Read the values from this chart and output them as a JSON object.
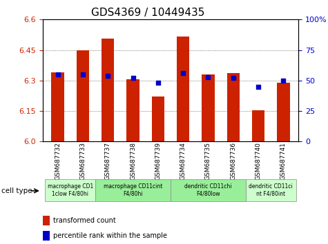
{
  "title": "GDS4369 / 10449435",
  "samples": [
    "GSM687732",
    "GSM687733",
    "GSM687737",
    "GSM687738",
    "GSM687739",
    "GSM687734",
    "GSM687735",
    "GSM687736",
    "GSM687740",
    "GSM687741"
  ],
  "transformed_counts": [
    6.34,
    6.45,
    6.505,
    6.305,
    6.22,
    6.515,
    6.33,
    6.335,
    6.155,
    6.29
  ],
  "percentile_ranks": [
    55,
    55,
    54,
    52,
    48,
    56,
    53,
    52,
    45,
    50
  ],
  "ylim_left": [
    6.0,
    6.6
  ],
  "ylim_right": [
    0,
    100
  ],
  "yticks_left": [
    6.0,
    6.15,
    6.3,
    6.45,
    6.6
  ],
  "yticks_right": [
    0,
    25,
    50,
    75,
    100
  ],
  "bar_color": "#cc2200",
  "dot_color": "#0000cc",
  "grid_color": "#555555",
  "cell_type_label": "cell type",
  "groups": [
    {
      "label": "macrophage CD1\n1clow F4/80hi",
      "start": 0,
      "end": 2,
      "color": "#ccffcc"
    },
    {
      "label": "macrophage CD11cint\nF4/80hi",
      "start": 2,
      "end": 5,
      "color": "#99ee99"
    },
    {
      "label": "dendritic CD11chi\nF4/80low",
      "start": 5,
      "end": 8,
      "color": "#99ee99"
    },
    {
      "label": "dendritic CD11ci\nnt F4/80int",
      "start": 8,
      "end": 10,
      "color": "#ccffcc"
    }
  ],
  "legend_items": [
    {
      "label": "transformed count",
      "color": "#cc2200",
      "marker": "square"
    },
    {
      "label": "percentile rank within the sample",
      "color": "#0000cc",
      "marker": "square"
    }
  ],
  "bar_width": 0.5
}
